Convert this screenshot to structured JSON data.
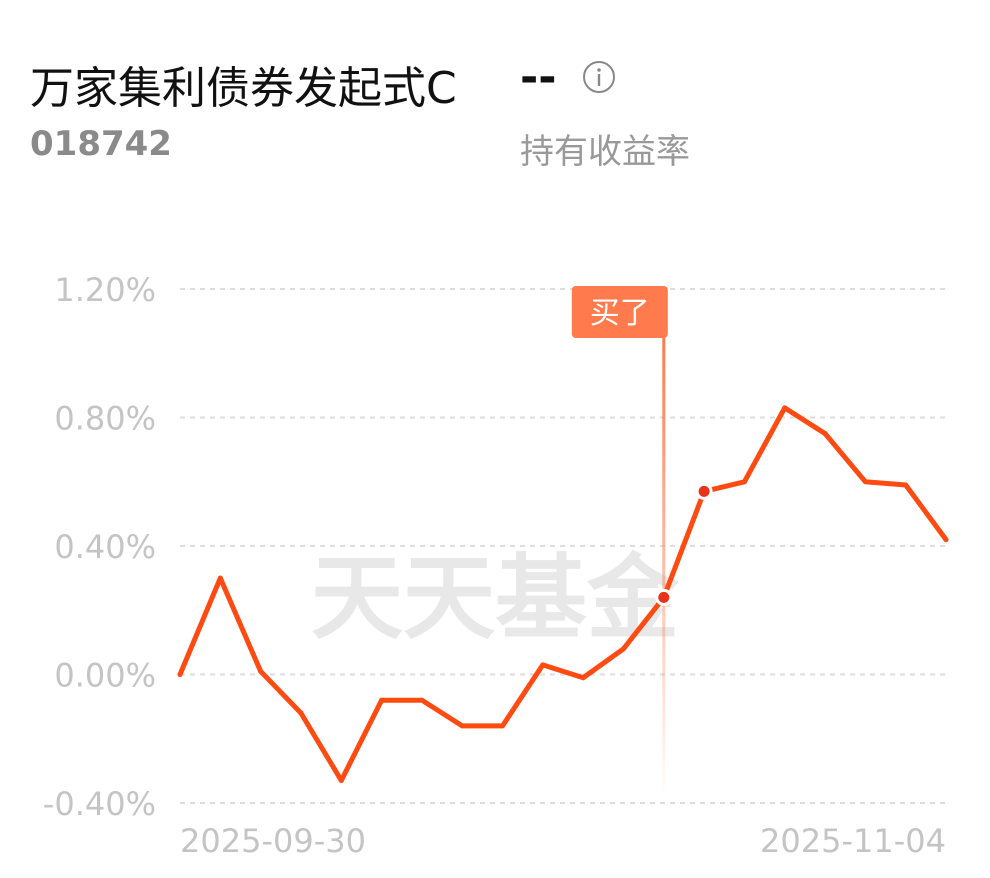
{
  "header": {
    "fund_name": "万家集利债券发起式C",
    "yield_value": "--",
    "fund_code": "018742",
    "yield_label": "持有收益率"
  },
  "watermark": "天天基金",
  "marker": {
    "label": "买了",
    "color": "#ff7a4d"
  },
  "colors": {
    "line": "#ff4a12",
    "grid": "#dddddd",
    "axis_text": "#c4c4c4"
  },
  "chart_data": {
    "type": "line",
    "title": "",
    "xlabel": "",
    "ylabel": "",
    "ylim": [
      -0.4,
      1.2
    ],
    "yticks": [
      "1.20%",
      "0.80%",
      "0.40%",
      "0.00%",
      "-0.40%"
    ],
    "ytick_values": [
      1.2,
      0.8,
      0.4,
      0.0,
      -0.4
    ],
    "xtick_labels": [
      "2025-09-30",
      "2025-11-04"
    ],
    "grid": true,
    "buy_index": 12,
    "highlight_index": 13,
    "series": [
      {
        "values": [
          0.0,
          0.3,
          0.01,
          -0.12,
          -0.33,
          -0.08,
          -0.08,
          -0.16,
          -0.16,
          0.03,
          -0.01,
          0.08,
          0.24,
          0.57,
          0.6,
          0.83,
          0.75,
          0.6,
          0.59,
          0.42
        ]
      }
    ]
  }
}
